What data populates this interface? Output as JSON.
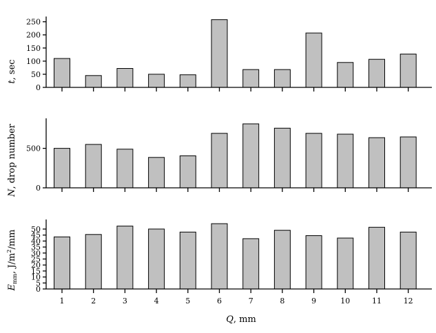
{
  "chart_data": [
    {
      "type": "bar",
      "categories": [
        "1",
        "2",
        "3",
        "4",
        "5",
        "6",
        "7",
        "8",
        "9",
        "10",
        "11",
        "12"
      ],
      "values": [
        110,
        45,
        72,
        50,
        48,
        258,
        68,
        68,
        207,
        95,
        107,
        127
      ],
      "ylabel_italic": "t",
      "ylabel_rest": ", sec",
      "ylim": [
        0,
        270
      ],
      "yticks": [
        0,
        50,
        100,
        150,
        200,
        250
      ],
      "grid": false,
      "show_x_tick_labels": false
    },
    {
      "type": "bar",
      "categories": [
        "1",
        "2",
        "3",
        "4",
        "5",
        "6",
        "7",
        "8",
        "9",
        "10",
        "11",
        "12"
      ],
      "values": [
        500,
        550,
        490,
        385,
        405,
        690,
        810,
        755,
        690,
        680,
        635,
        645
      ],
      "ylabel_italic": "N",
      "ylabel_rest": ", drop number",
      "ylim": [
        0,
        880
      ],
      "yticks": [
        0,
        500
      ],
      "grid": false,
      "show_x_tick_labels": false
    },
    {
      "type": "bar",
      "categories": [
        "1",
        "2",
        "3",
        "4",
        "5",
        "6",
        "7",
        "8",
        "9",
        "10",
        "11",
        "12"
      ],
      "values": [
        43.5,
        45.5,
        52.5,
        50,
        47.5,
        54.5,
        42,
        49,
        44.5,
        42.5,
        51.5,
        47.5
      ],
      "ylabel_italic": "E",
      "ylabel_sub": "mm",
      "ylabel_rest": ", J/m",
      "ylabel_sup": "2",
      "ylabel_end": "/mm",
      "ylim": [
        0,
        58
      ],
      "yticks": [
        0,
        5,
        10,
        15,
        20,
        25,
        30,
        35,
        40,
        45,
        50
      ],
      "grid": false,
      "show_x_tick_labels": true,
      "xlabel_italic": "Q",
      "xlabel_rest": ", mm"
    }
  ]
}
